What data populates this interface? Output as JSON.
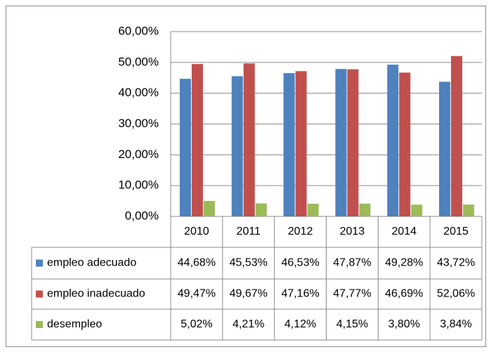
{
  "chart_data": {
    "type": "bar",
    "categories": [
      "2010",
      "2011",
      "2012",
      "2013",
      "2014",
      "2015"
    ],
    "series": [
      {
        "name": "empleo adecuado",
        "color": "#4f81bd",
        "values": [
          44.68,
          45.53,
          46.53,
          47.87,
          49.28,
          43.72
        ],
        "value_labels": [
          "44,68%",
          "45,53%",
          "46,53%",
          "47,87%",
          "49,28%",
          "43,72%"
        ]
      },
      {
        "name": "empleo inadecuado",
        "color": "#c0504d",
        "values": [
          49.47,
          49.67,
          47.16,
          47.77,
          46.69,
          52.06
        ],
        "value_labels": [
          "49,47%",
          "49,67%",
          "47,16%",
          "47,77%",
          "46,69%",
          "52,06%"
        ]
      },
      {
        "name": "desempleo",
        "color": "#9bbb59",
        "values": [
          5.02,
          4.21,
          4.12,
          4.15,
          3.8,
          3.84
        ],
        "value_labels": [
          "5,02%",
          "4,21%",
          "4,12%",
          "4,15%",
          "3,80%",
          "3,84%"
        ]
      }
    ],
    "ylim": [
      0,
      60
    ],
    "yticks": [
      {
        "value": 0,
        "label": "0,00%"
      },
      {
        "value": 10,
        "label": "10,00%"
      },
      {
        "value": 20,
        "label": "20,00%"
      },
      {
        "value": 30,
        "label": "30,00%"
      },
      {
        "value": 40,
        "label": "40,00%"
      },
      {
        "value": 50,
        "label": "50,00%"
      },
      {
        "value": 60,
        "label": "60,00%"
      }
    ],
    "grid": true
  }
}
